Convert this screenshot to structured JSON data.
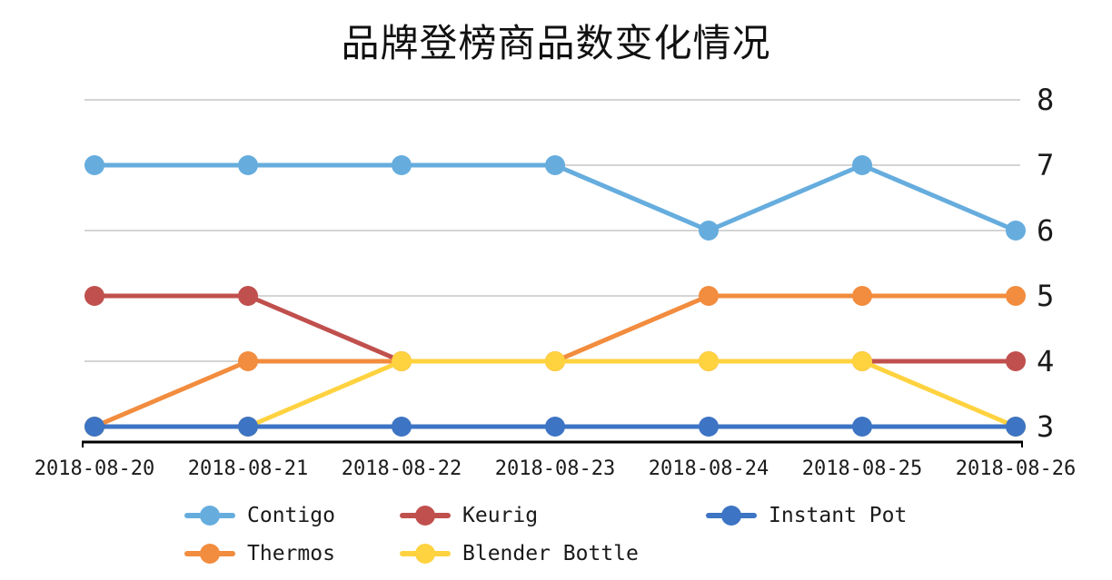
{
  "chart_data": {
    "type": "line",
    "title": "品牌登榜商品数变化情况",
    "x": [
      "2018-08-20",
      "2018-08-21",
      "2018-08-22",
      "2018-08-23",
      "2018-08-24",
      "2018-08-25",
      "2018-08-26"
    ],
    "series": [
      {
        "name": "Contigo",
        "color": "#66ADDE",
        "values": [
          7,
          7,
          7,
          7,
          6,
          7,
          6
        ]
      },
      {
        "name": "Keurig",
        "color": "#C0504D",
        "values": [
          5,
          5,
          4,
          4,
          4,
          4,
          4
        ]
      },
      {
        "name": "Instant Pot",
        "color": "#3D74C4",
        "values": [
          3,
          3,
          3,
          3,
          3,
          3,
          3
        ]
      },
      {
        "name": "Thermos",
        "color": "#F28C3E",
        "values": [
          3,
          4,
          4,
          4,
          5,
          5,
          5
        ]
      },
      {
        "name": "Blender Bottle",
        "color": "#FFD23F",
        "values": [
          3,
          3,
          4,
          4,
          4,
          4,
          3
        ]
      }
    ],
    "draw_order": [
      "Contigo",
      "Keurig",
      "Thermos",
      "Blender Bottle",
      "Instant Pot"
    ],
    "y_ticks": [
      8,
      7,
      6,
      5,
      4,
      3
    ],
    "ylim": [
      3,
      8
    ],
    "grid": true,
    "legend_position": "bottom",
    "colors": {
      "grid": "#d4d4d4",
      "axis": "#000000",
      "text": "#1a1a1a",
      "background": "#ffffff"
    }
  }
}
